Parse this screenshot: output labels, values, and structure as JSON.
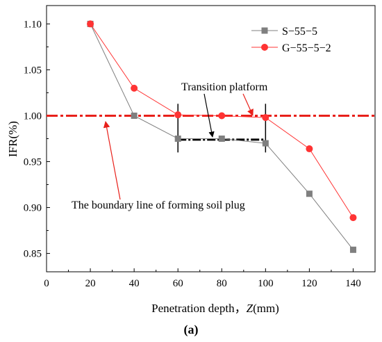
{
  "chart_data": {
    "type": "line",
    "xlabel_prefix": "Penetration depth，",
    "xlabel_var": "Z",
    "xlabel_unit": "(mm)",
    "ylabel": "IFR(%)",
    "panel_label": "(a)",
    "xlim": [
      0,
      150
    ],
    "ylim": [
      0.83,
      1.12
    ],
    "x_ticks": [
      0,
      20,
      40,
      60,
      80,
      100,
      120,
      140
    ],
    "y_ticks": [
      0.85,
      0.9,
      0.95,
      1.0,
      1.05,
      1.1
    ],
    "y_tick_labels": [
      "0.85",
      "0.90",
      "0.95",
      "1.00",
      "1.05",
      "1.10"
    ],
    "legend_position": "top-right",
    "series": [
      {
        "name": "S−55−5",
        "color": "#7f7f7f",
        "marker": "square",
        "x": [
          20,
          40,
          60,
          80,
          100,
          120,
          140
        ],
        "y": [
          1.1,
          1.0,
          0.975,
          0.975,
          0.97,
          0.915,
          0.854
        ]
      },
      {
        "name": "G−55−5−2",
        "color": "#ff3333",
        "marker": "circle",
        "x": [
          20,
          40,
          60,
          80,
          100,
          120,
          140
        ],
        "y": [
          1.1,
          1.03,
          1.001,
          1.0,
          0.998,
          0.964,
          0.889
        ]
      }
    ],
    "reference_line": {
      "y": 1.0,
      "color": "#e8201a",
      "style": "dash-dot"
    },
    "platform": {
      "x_start": 60,
      "x_end": 100,
      "y": 0.974,
      "bracket_y_low": 0.96,
      "bracket_y_high": 1.013
    },
    "annotations": {
      "transition": "Transition platform",
      "boundary": "The boundary line of forming soil plug"
    }
  }
}
